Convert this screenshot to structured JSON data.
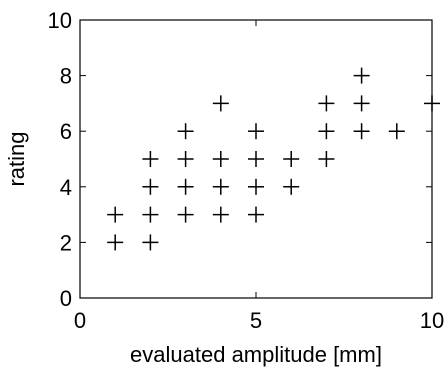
{
  "chart_data": {
    "type": "scatter",
    "title": "",
    "xlabel": "evaluated amplitude [mm]",
    "ylabel": "rating",
    "xlim": [
      0,
      10
    ],
    "ylim": [
      0,
      10
    ],
    "xticks": [
      0,
      5,
      10
    ],
    "yticks": [
      0,
      2,
      4,
      6,
      8,
      10
    ],
    "marker": "+",
    "grid": false,
    "series": [
      {
        "points": [
          {
            "x": 1,
            "y": 2
          },
          {
            "x": 1,
            "y": 3
          },
          {
            "x": 2,
            "y": 2
          },
          {
            "x": 2,
            "y": 3
          },
          {
            "x": 2,
            "y": 4
          },
          {
            "x": 2,
            "y": 5
          },
          {
            "x": 3,
            "y": 3
          },
          {
            "x": 3,
            "y": 4
          },
          {
            "x": 3,
            "y": 5
          },
          {
            "x": 3,
            "y": 6
          },
          {
            "x": 4,
            "y": 3
          },
          {
            "x": 4,
            "y": 4
          },
          {
            "x": 4,
            "y": 5
          },
          {
            "x": 4,
            "y": 7
          },
          {
            "x": 5,
            "y": 3
          },
          {
            "x": 5,
            "y": 4
          },
          {
            "x": 5,
            "y": 5
          },
          {
            "x": 5,
            "y": 6
          },
          {
            "x": 6,
            "y": 4
          },
          {
            "x": 6,
            "y": 5
          },
          {
            "x": 7,
            "y": 5
          },
          {
            "x": 7,
            "y": 6
          },
          {
            "x": 7,
            "y": 7
          },
          {
            "x": 8,
            "y": 6
          },
          {
            "x": 8,
            "y": 7
          },
          {
            "x": 8,
            "y": 8
          },
          {
            "x": 9,
            "y": 6
          },
          {
            "x": 10,
            "y": 7
          }
        ]
      }
    ],
    "colors": {
      "axis": "#000000",
      "marker": "#000000",
      "background": "#ffffff"
    }
  }
}
